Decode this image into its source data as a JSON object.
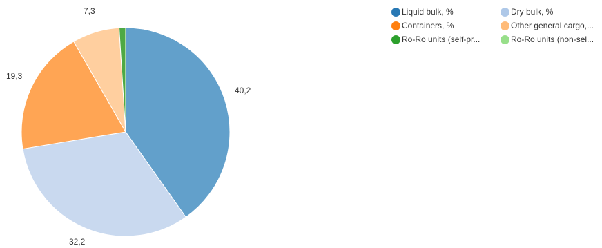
{
  "chart_data": {
    "type": "pie",
    "title": "",
    "slices": [
      {
        "name": "Liquid bulk, %",
        "legend_label": "Liquid bulk, %",
        "value": 40.2,
        "label": "40,2",
        "color": "#62a0cb",
        "legend_color": "#2878b4"
      },
      {
        "name": "Dry bulk, %",
        "legend_label": "Dry bulk, %",
        "value": 32.2,
        "label": "32,2",
        "color": "#c9d9ef",
        "legend_color": "#aec8e8"
      },
      {
        "name": "Containers, %",
        "legend_label": "Containers, %",
        "value": 19.3,
        "label": "19,3",
        "color": "#ffa554",
        "legend_color": "#ff7f0e"
      },
      {
        "name": "Other general cargo, %",
        "legend_label": "Other general cargo,...",
        "value": 7.3,
        "label": "7,3",
        "color": "#ffcf9f",
        "legend_color": "#ffbb78"
      },
      {
        "name": "Ro-Ro units (self-propelled), %",
        "legend_label": "Ro-Ro units (self-pr...",
        "value": 1.0,
        "label": "",
        "color": "#4ea944",
        "legend_color": "#2ca02c"
      },
      {
        "name": "Ro-Ro units (non-self-propelled), %",
        "legend_label": "Ro-Ro units (non-sel...",
        "value": 0.0,
        "label": "",
        "color": "#98df8a",
        "legend_color": "#98df8a"
      }
    ],
    "legend_position": "top-right",
    "grid": false
  }
}
